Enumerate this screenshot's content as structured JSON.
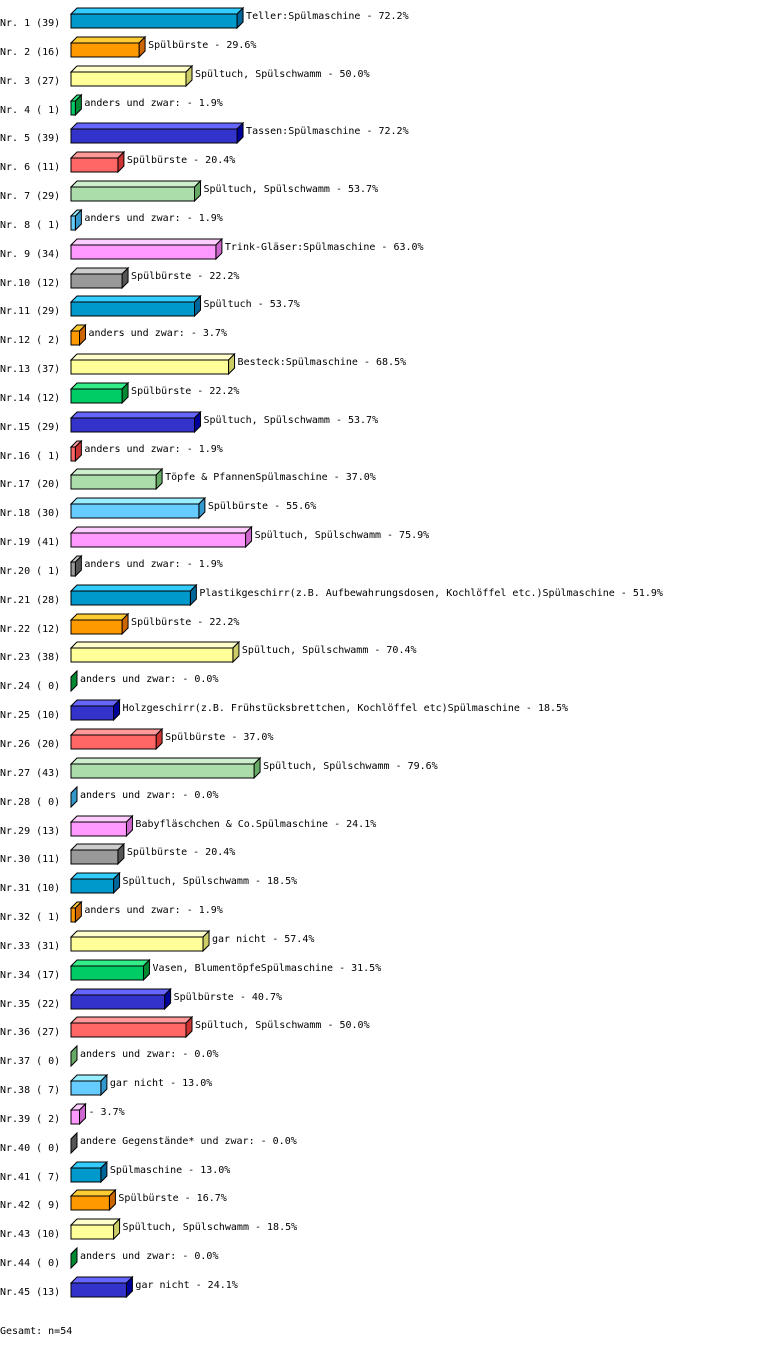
{
  "chart_data": {
    "type": "bar",
    "orientation": "horizontal",
    "style": "3d",
    "xlim": [
      0,
      100
    ],
    "unit": "%",
    "grid": false,
    "palette": [
      {
        "front": "#0099cc",
        "top": "#33ccff",
        "side": "#006699"
      },
      {
        "front": "#ff9900",
        "top": "#ffcc33",
        "side": "#cc6600"
      },
      {
        "front": "#ffff99",
        "top": "#ffffcc",
        "side": "#cccc66"
      },
      {
        "front": "#00cc66",
        "top": "#33ee88",
        "side": "#008833"
      },
      {
        "front": "#3333cc",
        "top": "#6666ff",
        "side": "#000099"
      },
      {
        "front": "#ff6666",
        "top": "#ff9999",
        "side": "#cc3333"
      },
      {
        "front": "#aaddaa",
        "top": "#cceecc",
        "side": "#66aa66"
      },
      {
        "front": "#66ccff",
        "top": "#99eeff",
        "side": "#3399cc"
      },
      {
        "front": "#ff99ff",
        "top": "#ffccff",
        "side": "#cc66cc"
      },
      {
        "front": "#999999",
        "top": "#cccccc",
        "side": "#555555"
      }
    ],
    "rows": [
      {
        "id": "Nr. 1",
        "n": 39,
        "label": "Teller:Spülmaschine",
        "pct": 72.2
      },
      {
        "id": "Nr. 2",
        "n": 16,
        "label": "Spülbürste",
        "pct": 29.6
      },
      {
        "id": "Nr. 3",
        "n": 27,
        "label": "Spültuch, Spülschwamm",
        "pct": 50.0
      },
      {
        "id": "Nr. 4",
        "n": 1,
        "label": "anders und zwar:",
        "pct": 1.9
      },
      {
        "id": "Nr. 5",
        "n": 39,
        "label": "Tassen:Spülmaschine",
        "pct": 72.2
      },
      {
        "id": "Nr. 6",
        "n": 11,
        "label": "Spülbürste",
        "pct": 20.4
      },
      {
        "id": "Nr. 7",
        "n": 29,
        "label": "Spültuch, Spülschwamm",
        "pct": 53.7
      },
      {
        "id": "Nr. 8",
        "n": 1,
        "label": "anders und zwar:",
        "pct": 1.9
      },
      {
        "id": "Nr. 9",
        "n": 34,
        "label": "Trink-Gläser:Spülmaschine",
        "pct": 63.0
      },
      {
        "id": "Nr.10",
        "n": 12,
        "label": "Spülbürste",
        "pct": 22.2
      },
      {
        "id": "Nr.11",
        "n": 29,
        "label": "Spültuch",
        "pct": 53.7
      },
      {
        "id": "Nr.12",
        "n": 2,
        "label": "anders und zwar:",
        "pct": 3.7
      },
      {
        "id": "Nr.13",
        "n": 37,
        "label": "Besteck:Spülmaschine",
        "pct": 68.5
      },
      {
        "id": "Nr.14",
        "n": 12,
        "label": "Spülbürste",
        "pct": 22.2
      },
      {
        "id": "Nr.15",
        "n": 29,
        "label": "Spültuch, Spülschwamm",
        "pct": 53.7
      },
      {
        "id": "Nr.16",
        "n": 1,
        "label": "anders und zwar:",
        "pct": 1.9
      },
      {
        "id": "Nr.17",
        "n": 20,
        "label": "Töpfe & PfannenSpülmaschine",
        "pct": 37.0
      },
      {
        "id": "Nr.18",
        "n": 30,
        "label": "Spülbürste",
        "pct": 55.6
      },
      {
        "id": "Nr.19",
        "n": 41,
        "label": "Spültuch, Spülschwamm",
        "pct": 75.9
      },
      {
        "id": "Nr.20",
        "n": 1,
        "label": "anders und zwar:",
        "pct": 1.9
      },
      {
        "id": "Nr.21",
        "n": 28,
        "label": "Plastikgeschirr(z.B. Aufbewahrungsdosen, Kochlöffel etc.)Spülmaschine",
        "pct": 51.9
      },
      {
        "id": "Nr.22",
        "n": 12,
        "label": "Spülbürste",
        "pct": 22.2
      },
      {
        "id": "Nr.23",
        "n": 38,
        "label": "Spültuch, Spülschwamm",
        "pct": 70.4
      },
      {
        "id": "Nr.24",
        "n": 0,
        "label": "anders und zwar:",
        "pct": 0.0
      },
      {
        "id": "Nr.25",
        "n": 10,
        "label": "Holzgeschirr(z.B. Frühstücksbrettchen, Kochlöffel etc)Spülmaschine",
        "pct": 18.5
      },
      {
        "id": "Nr.26",
        "n": 20,
        "label": "Spülbürste",
        "pct": 37.0
      },
      {
        "id": "Nr.27",
        "n": 43,
        "label": "Spültuch, Spülschwamm",
        "pct": 79.6
      },
      {
        "id": "Nr.28",
        "n": 0,
        "label": "anders und zwar:",
        "pct": 0.0
      },
      {
        "id": "Nr.29",
        "n": 13,
        "label": "Babyfläschchen & Co.Spülmaschine",
        "pct": 24.1
      },
      {
        "id": "Nr.30",
        "n": 11,
        "label": "Spülbürste",
        "pct": 20.4
      },
      {
        "id": "Nr.31",
        "n": 10,
        "label": "Spültuch, Spülschwamm",
        "pct": 18.5
      },
      {
        "id": "Nr.32",
        "n": 1,
        "label": "anders und zwar:",
        "pct": 1.9
      },
      {
        "id": "Nr.33",
        "n": 31,
        "label": "gar nicht",
        "pct": 57.4
      },
      {
        "id": "Nr.34",
        "n": 17,
        "label": "Vasen, BlumentöpfeSpülmaschine",
        "pct": 31.5
      },
      {
        "id": "Nr.35",
        "n": 22,
        "label": "Spülbürste",
        "pct": 40.7
      },
      {
        "id": "Nr.36",
        "n": 27,
        "label": "Spültuch, Spülschwamm",
        "pct": 50.0
      },
      {
        "id": "Nr.37",
        "n": 0,
        "label": "anders und zwar:",
        "pct": 0.0
      },
      {
        "id": "Nr.38",
        "n": 7,
        "label": "gar nicht",
        "pct": 13.0
      },
      {
        "id": "Nr.39",
        "n": 2,
        "label": "",
        "pct": 3.7
      },
      {
        "id": "Nr.40",
        "n": 0,
        "label": "andere Gegenstände* und zwar:",
        "pct": 0.0
      },
      {
        "id": "Nr.41",
        "n": 7,
        "label": "Spülmaschine",
        "pct": 13.0
      },
      {
        "id": "Nr.42",
        "n": 9,
        "label": "Spülbürste",
        "pct": 16.7
      },
      {
        "id": "Nr.43",
        "n": 10,
        "label": "Spültuch, Spülschwamm",
        "pct": 18.5
      },
      {
        "id": "Nr.44",
        "n": 0,
        "label": "anders und zwar:",
        "pct": 0.0
      },
      {
        "id": "Nr.45",
        "n": 13,
        "label": "gar nicht",
        "pct": 24.1
      }
    ]
  },
  "footer": {
    "total": "Gesamt: n=54"
  }
}
